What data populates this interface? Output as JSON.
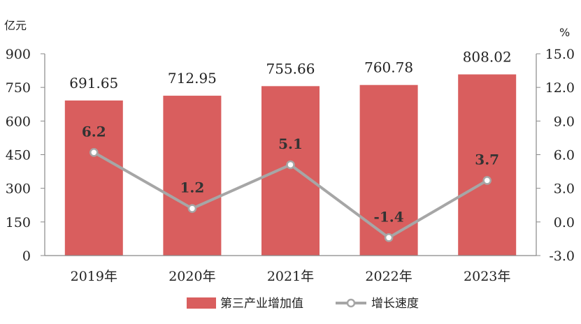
{
  "chart_data": {
    "type": "bar+line",
    "categories": [
      "2019年",
      "2020年",
      "2021年",
      "2022年",
      "2023年"
    ],
    "series": [
      {
        "name": "第三产业增加值",
        "type": "bar",
        "axis": "left",
        "values": [
          691.65,
          712.95,
          755.66,
          760.78,
          808.02
        ],
        "value_labels": [
          "691.65",
          "712.95",
          "755.66",
          "760.78",
          "808.02"
        ]
      },
      {
        "name": "增长速度",
        "type": "line",
        "axis": "right",
        "values": [
          6.2,
          1.2,
          5.1,
          -1.4,
          3.7
        ],
        "value_labels": [
          "6.2",
          "1.2",
          "5.1",
          "-1.4",
          "3.7"
        ]
      }
    ],
    "left_axis": {
      "unit": "亿元",
      "min": 0,
      "max": 900,
      "ticks": [
        0,
        150,
        300,
        450,
        600,
        750,
        900
      ],
      "tick_labels": [
        "0",
        "150",
        "300",
        "450",
        "600",
        "750",
        "900"
      ]
    },
    "right_axis": {
      "unit": "%",
      "min": -3,
      "max": 15,
      "ticks": [
        -3,
        0,
        3,
        6,
        9,
        12,
        15
      ],
      "tick_labels": [
        "-3.0",
        "0.0",
        "3.0",
        "6.0",
        "9.0",
        "12.0",
        "15.0"
      ]
    },
    "grid": false,
    "legend": "bottom",
    "colors": {
      "bar": "#d95e5e",
      "line": "#a6a6a6",
      "axis": "#888888"
    }
  }
}
